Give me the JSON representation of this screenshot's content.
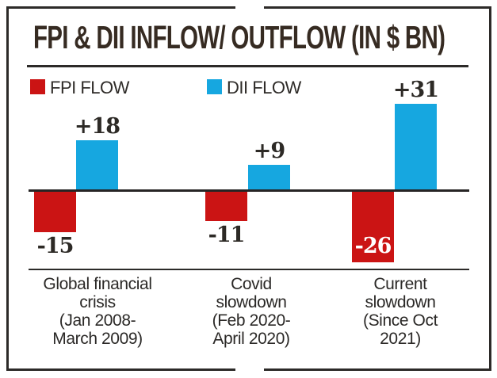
{
  "title": "FPI & DII INFLOW/ OUTFLOW (IN $ BN)",
  "legend": {
    "fpi_label": "FPI FLOW",
    "dii_label": "DII FLOW"
  },
  "style": {
    "fpi_red": "#cb1414",
    "dii_blue": "#16a7e0",
    "ink": "#2d2a26",
    "line": "#2c2a28"
  },
  "chart_data": {
    "type": "bar",
    "title": "FPI & DII INFLOW/ OUTFLOW (IN $ BN)",
    "unit": "$ BN",
    "categories": [
      "Global financial\ncrisis\n(Jan 2008-\nMarch 2009)",
      "Covid\nslowdown\n(Feb 2020-\nApril 2020)",
      "Current\nslowdown\n(Since Oct\n2021)"
    ],
    "series": [
      {
        "name": "FPI FLOW",
        "color": "#cb1414",
        "values": [
          -15,
          -11,
          -26
        ],
        "display_labels": [
          "-15",
          "-11",
          "-26"
        ],
        "label_inside": [
          false,
          false,
          true
        ]
      },
      {
        "name": "DII FLOW",
        "color": "#16a7e0",
        "values": [
          18,
          9,
          31
        ],
        "display_labels": [
          "+18",
          "+9",
          "+31"
        ],
        "label_inside": [
          false,
          false,
          false
        ]
      }
    ],
    "baseline": 0,
    "value_axis_hidden": true,
    "grid": false,
    "legend_position": "top-left"
  }
}
